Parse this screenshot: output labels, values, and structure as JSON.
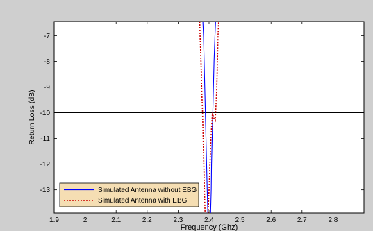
{
  "figure": {
    "background_color": "#cfcfcf",
    "axes_color": "#ffffff",
    "legend_background_color": "#f5deb3"
  },
  "chart_data": {
    "type": "line",
    "title": "",
    "xlabel": "Frequency (Ghz)",
    "ylabel": "Return Loss (dB)",
    "xlim": [
      1.9,
      2.9
    ],
    "ylim": [
      -13.9,
      -6.45
    ],
    "xticks": [
      1.9,
      2.0,
      2.1,
      2.2,
      2.3,
      2.4,
      2.5,
      2.6,
      2.7,
      2.8
    ],
    "xtick_labels": [
      "1.9",
      "2",
      "2.1",
      "2.2",
      "2.3",
      "2.4",
      "2.5",
      "2.6",
      "2.7",
      "2.8"
    ],
    "yticks": [
      -7,
      -8,
      -9,
      -10,
      -11,
      -12,
      -13
    ],
    "ytick_labels": [
      "-7",
      "-8",
      "-9",
      "-10",
      "-11",
      "-12",
      "-13"
    ],
    "grid": false,
    "legend_position": "bottom-left",
    "reference_line": {
      "y": -10,
      "color": "#000000"
    },
    "series": [
      {
        "name": "Simulated Antenna without EBG",
        "color": "#0000ff",
        "style": "solid",
        "points": [
          [
            2.38,
            -6.45
          ],
          [
            2.382,
            -7.0
          ],
          [
            2.384,
            -8.0
          ],
          [
            2.386,
            -9.0
          ],
          [
            2.388,
            -10.0
          ],
          [
            2.39,
            -11.0
          ],
          [
            2.392,
            -12.0
          ],
          [
            2.394,
            -13.0
          ],
          [
            2.396,
            -13.9
          ]
        ],
        "points_right": [
          [
            2.405,
            -13.9
          ],
          [
            2.407,
            -13.0
          ],
          [
            2.408,
            -12.0
          ],
          [
            2.41,
            -11.0
          ],
          [
            2.412,
            -10.0
          ],
          [
            2.414,
            -9.0
          ],
          [
            2.416,
            -8.0
          ],
          [
            2.419,
            -7.0
          ],
          [
            2.421,
            -6.45
          ]
        ]
      },
      {
        "name": "Simulated Antenna with EBG",
        "color": "#cc0000",
        "style": "dotted",
        "points": [
          [
            2.37,
            -6.45
          ],
          [
            2.371,
            -7.0
          ],
          [
            2.374,
            -8.0
          ],
          [
            2.376,
            -9.0
          ],
          [
            2.379,
            -10.0
          ],
          [
            2.381,
            -11.0
          ],
          [
            2.383,
            -12.0
          ],
          [
            2.385,
            -13.0
          ],
          [
            2.387,
            -13.9
          ]
        ],
        "points_right": [
          [
            2.397,
            -13.9
          ],
          [
            2.4,
            -13.0
          ],
          [
            2.403,
            -12.0
          ],
          [
            2.406,
            -11.0
          ],
          [
            2.411,
            -10.0
          ],
          [
            2.415,
            -10.2
          ],
          [
            2.42,
            -10.3
          ],
          [
            2.425,
            -9.0
          ],
          [
            2.427,
            -8.0
          ],
          [
            2.429,
            -7.0
          ],
          [
            2.431,
            -6.45
          ]
        ]
      }
    ]
  }
}
